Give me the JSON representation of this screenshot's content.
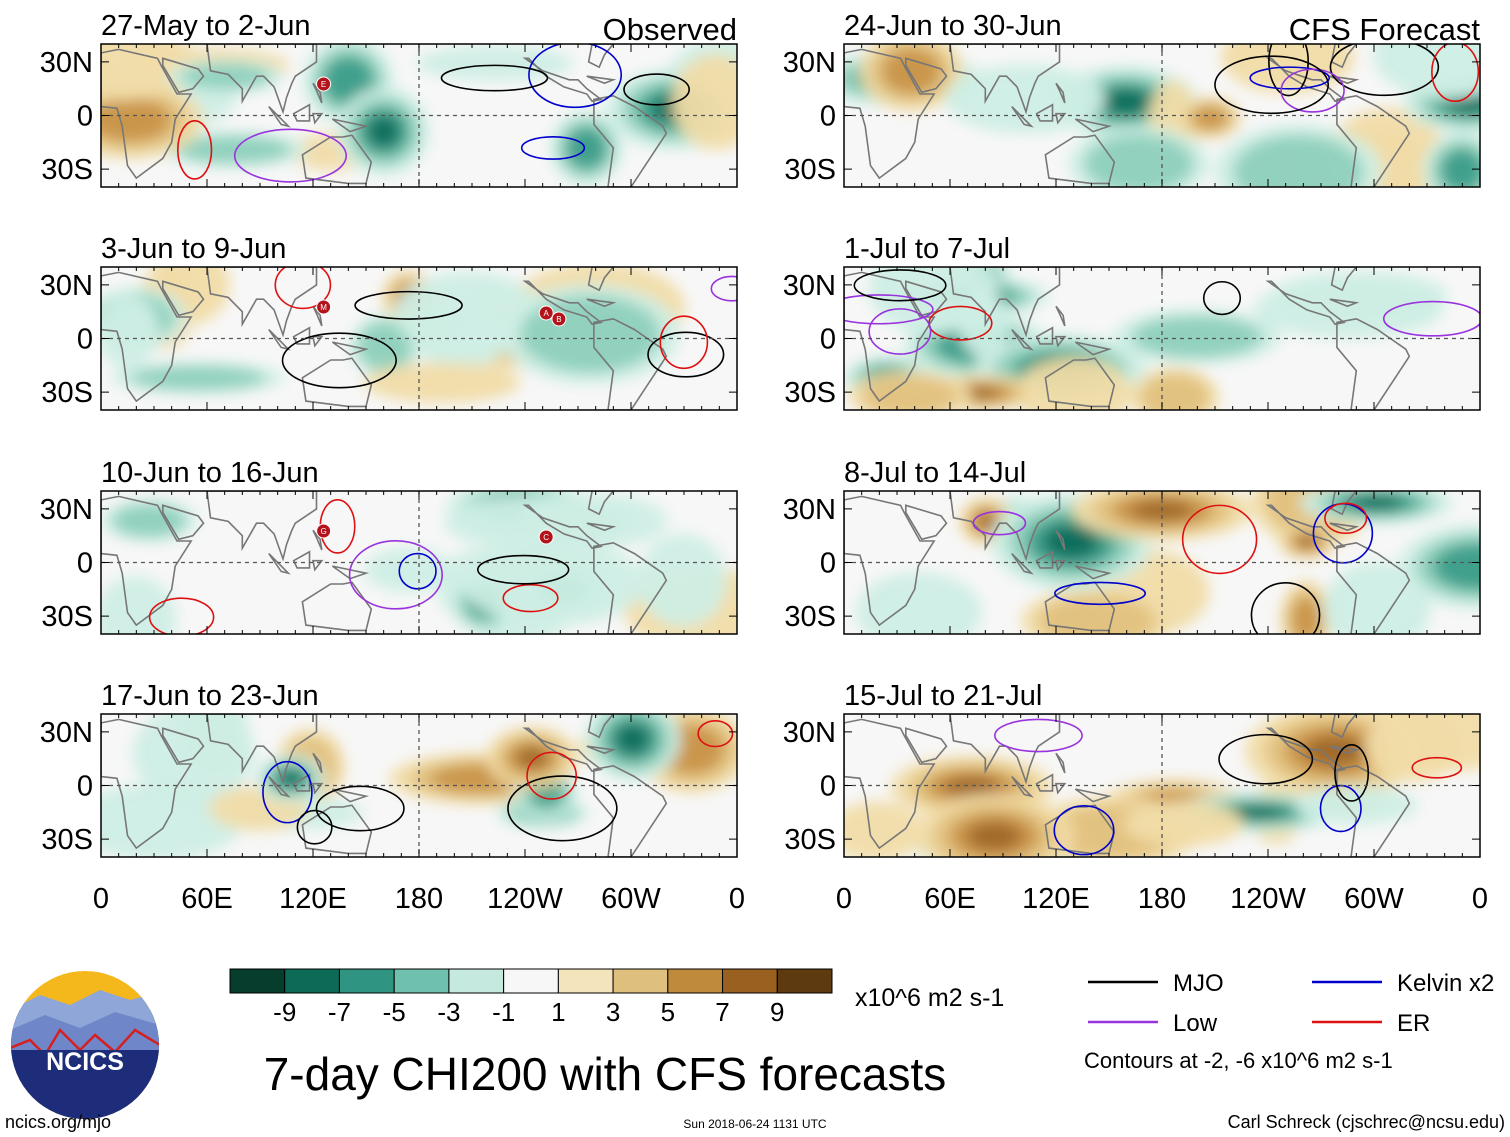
{
  "chart_data": {
    "type": "map-panels",
    "title": "7-day CHI200 with CFS forecasts",
    "units": "x10^6 m2 s-1",
    "column_headers": {
      "left": "Observed",
      "right": "CFS Forecast"
    },
    "latitude_labels": [
      "30N",
      "0",
      "30S"
    ],
    "longitude_labels": [
      "0",
      "60E",
      "120E",
      "180",
      "120W",
      "60W",
      "0"
    ],
    "panels": [
      {
        "period": "27-May to 2-Jun",
        "kind": "observed",
        "markers": [
          "E"
        ]
      },
      {
        "period": "3-Jun to 9-Jun",
        "kind": "observed",
        "markers": [
          "M",
          "A",
          "B"
        ]
      },
      {
        "period": "10-Jun to 16-Jun",
        "kind": "observed",
        "markers": [
          "G",
          "C"
        ]
      },
      {
        "period": "17-Jun to 23-Jun",
        "kind": "observed",
        "markers": []
      },
      {
        "period": "24-Jun to 30-Jun",
        "kind": "forecast",
        "markers": []
      },
      {
        "period": "1-Jul to 7-Jul",
        "kind": "forecast",
        "markers": []
      },
      {
        "period": "8-Jul to 14-Jul",
        "kind": "forecast",
        "markers": []
      },
      {
        "period": "15-Jul to 21-Jul",
        "kind": "forecast",
        "markers": []
      }
    ],
    "colorbar": {
      "tick_labels": [
        "-9",
        "-7",
        "-5",
        "-3",
        "-1",
        "1",
        "3",
        "5",
        "7",
        "9"
      ],
      "colors": [
        "#063d2c",
        "#0d6a57",
        "#2f9582",
        "#6fc0ac",
        "#c5e9df",
        "#f7f7f7",
        "#f4e4bb",
        "#dfbf7d",
        "#c08a3d",
        "#9a6020",
        "#5e3a10"
      ]
    },
    "legend": [
      {
        "label": "MJO",
        "color": "#000000"
      },
      {
        "label": "Kelvin x2",
        "color": "#0000cc"
      },
      {
        "label": "Low",
        "color": "#9933dd"
      },
      {
        "label": "ER",
        "color": "#dd1111"
      }
    ],
    "contour_note": "Contours at -2, -6 x10^6 m2 s-1"
  },
  "footer": {
    "logo_text": "NCICS",
    "site": "ncics.org/mjo",
    "timestamp": "Sun 2018-06-24 1131 UTC",
    "author": "Carl Schreck (cjschrec@ncsu.edu)"
  },
  "colors": {
    "equator": "#555555",
    "land": "#777777"
  }
}
